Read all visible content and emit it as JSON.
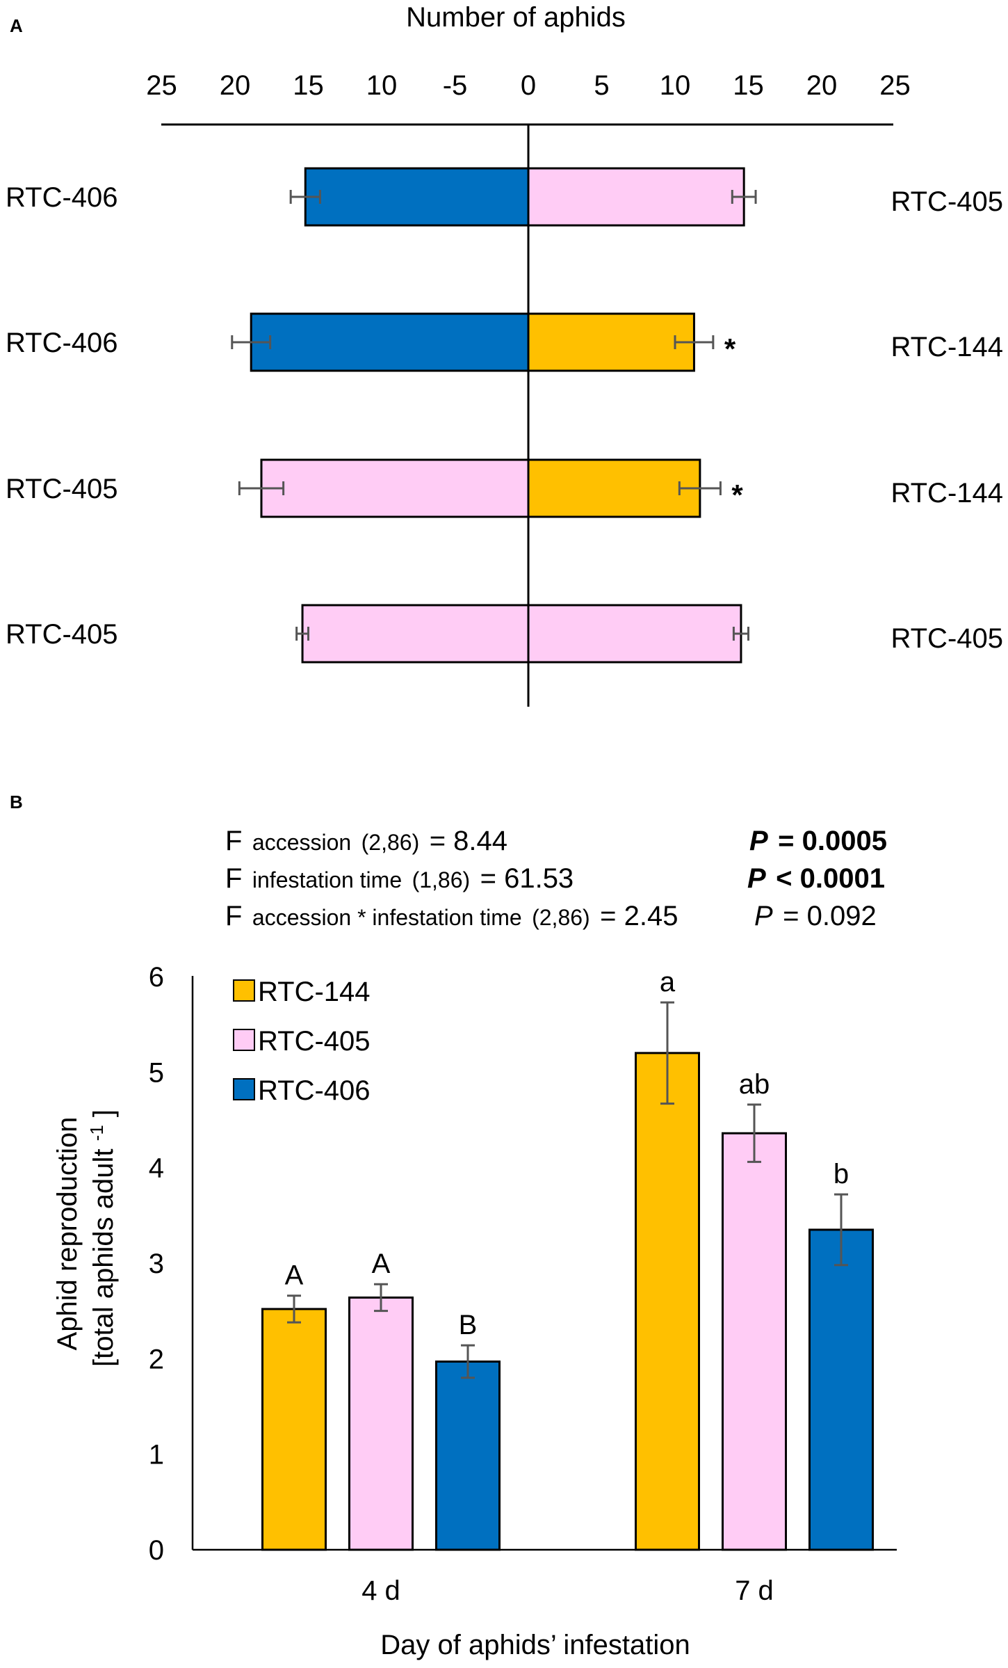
{
  "chart_data": [
    {
      "panel_label": "A",
      "type": "bar",
      "orientation": "horizontal-diverging",
      "title": "Number of aphids",
      "xlim": [
        -25,
        25
      ],
      "tick_labels": [
        "25",
        "20",
        "15",
        "10",
        "-5",
        "0",
        "5",
        "10",
        "15",
        "20",
        "25"
      ],
      "tick_values": [
        -25,
        -20,
        -15,
        -10,
        -5,
        0,
        5,
        10,
        15,
        20,
        25
      ],
      "colors": {
        "RTC-144": "#FFC000",
        "RTC-405": "#FFCCF5",
        "RTC-406": "#0070C0"
      },
      "rows": [
        {
          "left_label": "RTC-406",
          "left_value": 15.2,
          "left_err": 1.0,
          "right_label": "RTC-405",
          "right_value": 14.7,
          "right_err": 0.8,
          "sig": ""
        },
        {
          "left_label": "RTC-406",
          "left_value": 18.9,
          "left_err": 1.3,
          "right_label": "RTC-144",
          "right_value": 11.3,
          "right_err": 1.3,
          "sig": "*"
        },
        {
          "left_label": "RTC-405",
          "left_value": 18.2,
          "left_err": 1.5,
          "right_label": "RTC-144",
          "right_value": 11.7,
          "right_err": 1.4,
          "sig": "*"
        },
        {
          "left_label": "RTC-405",
          "left_value": 15.4,
          "left_err": 0.4,
          "right_label": "RTC-405",
          "right_value": 14.5,
          "right_err": 0.5,
          "sig": ""
        }
      ]
    },
    {
      "panel_label": "B",
      "type": "bar",
      "stats": [
        {
          "prefix": "F",
          "sub": "accession",
          "df": "(2,86)",
          "value": "= 8.44",
          "p_label": "P",
          "p_value": "= 0.0005",
          "bold": true
        },
        {
          "prefix": "F",
          "sub": "infestation time",
          "df": "(1,86)",
          "value": "= 61.53",
          "p_label": "P",
          "p_value": "< 0.0001",
          "bold": true
        },
        {
          "prefix": "F",
          "sub": "accession * infestation time",
          "df": "(2,86)",
          "value": "= 2.45",
          "p_label": "P",
          "p_value": "= 0.092",
          "bold": false
        }
      ],
      "ylabel_line1": "Aphid reproduction",
      "ylabel_line2": "[total aphids  adult",
      "ylabel_sup": "-1",
      "ylabel_end": "]",
      "xlabel": "Day of aphids’ infestation",
      "ylim": [
        0,
        6
      ],
      "yticks": [
        "0",
        "1",
        "2",
        "3",
        "4",
        "5",
        "6"
      ],
      "categories": [
        "4 d",
        "7 d"
      ],
      "series": [
        {
          "name": "RTC-144",
          "color": "#FFC000",
          "values": [
            2.52,
            5.2
          ],
          "errors": [
            0.14,
            0.53
          ],
          "letters": [
            "A",
            "a"
          ]
        },
        {
          "name": "RTC-405",
          "color": "#FFCCF5",
          "values": [
            2.64,
            4.36
          ],
          "errors": [
            0.14,
            0.3
          ],
          "letters": [
            "A",
            "ab"
          ]
        },
        {
          "name": "RTC-406",
          "color": "#0070C0",
          "values": [
            1.97,
            3.35
          ],
          "errors": [
            0.17,
            0.37
          ],
          "letters": [
            "B",
            "b"
          ]
        }
      ]
    }
  ]
}
